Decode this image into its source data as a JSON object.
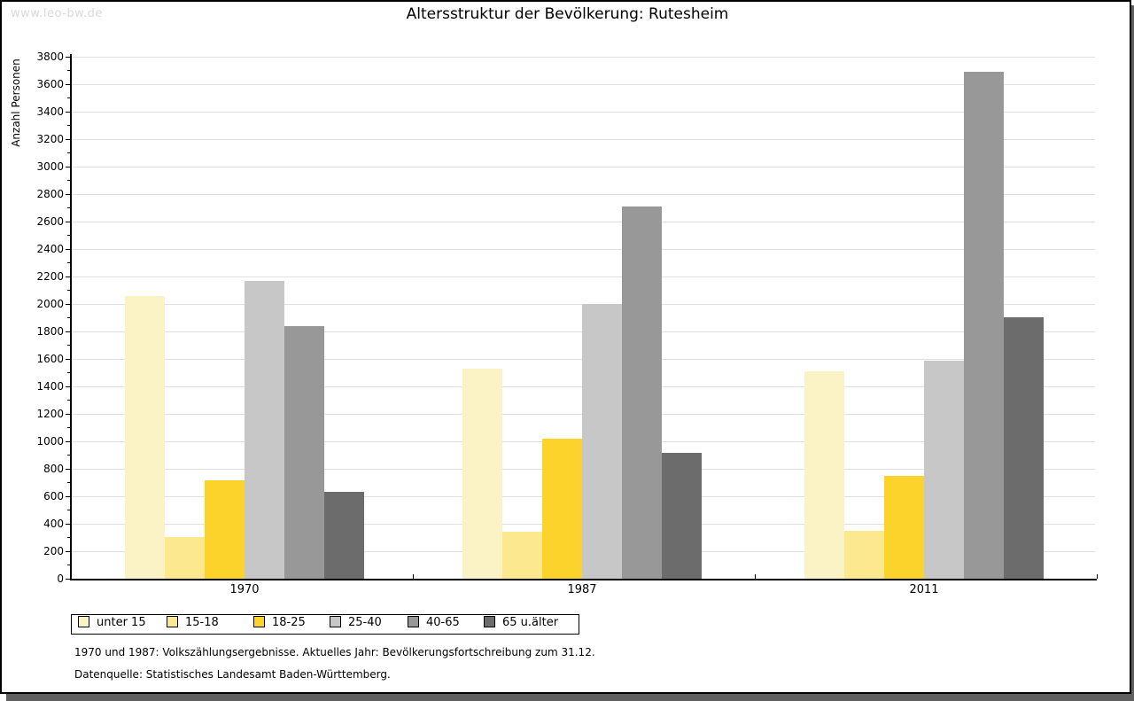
{
  "watermark": "www.leo-bw.de",
  "chart_data": {
    "type": "bar",
    "title": "Altersstruktur der Bevölkerung: Rutesheim",
    "xlabel": "",
    "ylabel": "Anzahl Personen",
    "categories": [
      "1970",
      "1987",
      "2011"
    ],
    "series": [
      {
        "name": "unter 15",
        "color": "#FBF2C6",
        "values": [
          2060,
          1530,
          1510
        ]
      },
      {
        "name": "15-18",
        "color": "#FCE98F",
        "values": [
          300,
          345,
          350
        ]
      },
      {
        "name": "18-25",
        "color": "#FCD32B",
        "values": [
          715,
          1020,
          750
        ]
      },
      {
        "name": "25-40",
        "color": "#C7C7C7",
        "values": [
          2170,
          2000,
          1590
        ]
      },
      {
        "name": "40-65",
        "color": "#989898",
        "values": [
          1840,
          2710,
          3690
        ]
      },
      {
        "name": "65 u.älter",
        "color": "#6C6C6C",
        "values": [
          630,
          915,
          1900
        ]
      }
    ],
    "ylim": [
      0,
      3800
    ],
    "ytick_step": 200,
    "ytick_minor_step": 100,
    "grid": true,
    "legend_position": "bottom-left"
  },
  "footnotes": [
    "1970 und 1987: Volkszählungsergebnisse. Aktuelles Jahr: Bevölkerungsfortschreibung zum 31.12.",
    "Datenquelle: Statistisches Landesamt Baden-Württemberg."
  ],
  "colors": {
    "grid": "#E0E0E0",
    "axis": "#000000",
    "watermark": "#D9D9D9",
    "frame_shadow": "#606060",
    "background": "#FFFFFF"
  }
}
